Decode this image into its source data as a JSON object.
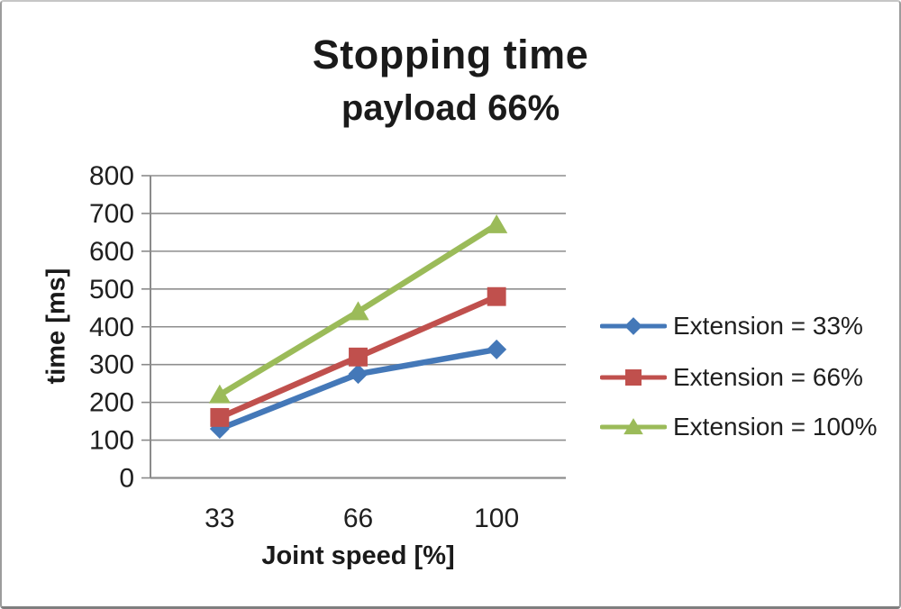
{
  "title": "Stopping time",
  "subtitle": "payload 66%",
  "chart_data": {
    "type": "line",
    "categories": [
      "33",
      "66",
      "100"
    ],
    "series": [
      {
        "name": "Extension = 33%",
        "values": [
          130,
          275,
          340
        ],
        "color": "#4478b8",
        "marker": "diamond"
      },
      {
        "name": "Extension = 66%",
        "values": [
          160,
          320,
          480
        ],
        "color": "#c0504d",
        "marker": "square"
      },
      {
        "name": "Extension = 100%",
        "values": [
          220,
          440,
          670
        ],
        "color": "#9bbb59",
        "marker": "triangle"
      }
    ],
    "title": "Stopping time",
    "subtitle": "payload 66%",
    "xlabel": "Joint speed [%]",
    "ylabel": "time [ms]",
    "ylim": [
      0,
      800
    ],
    "ytick_step": 100,
    "ytick_labels": [
      "0",
      "100",
      "200",
      "300",
      "400",
      "500",
      "600",
      "700",
      "800"
    ],
    "grid": true,
    "legend_position": "right",
    "colors": {
      "gridline": "#8e8e8e",
      "axis_line": "#8a8a8a",
      "text": "#1f1f1f",
      "background": "#ffffff",
      "border": "#9c9c9c"
    }
  }
}
